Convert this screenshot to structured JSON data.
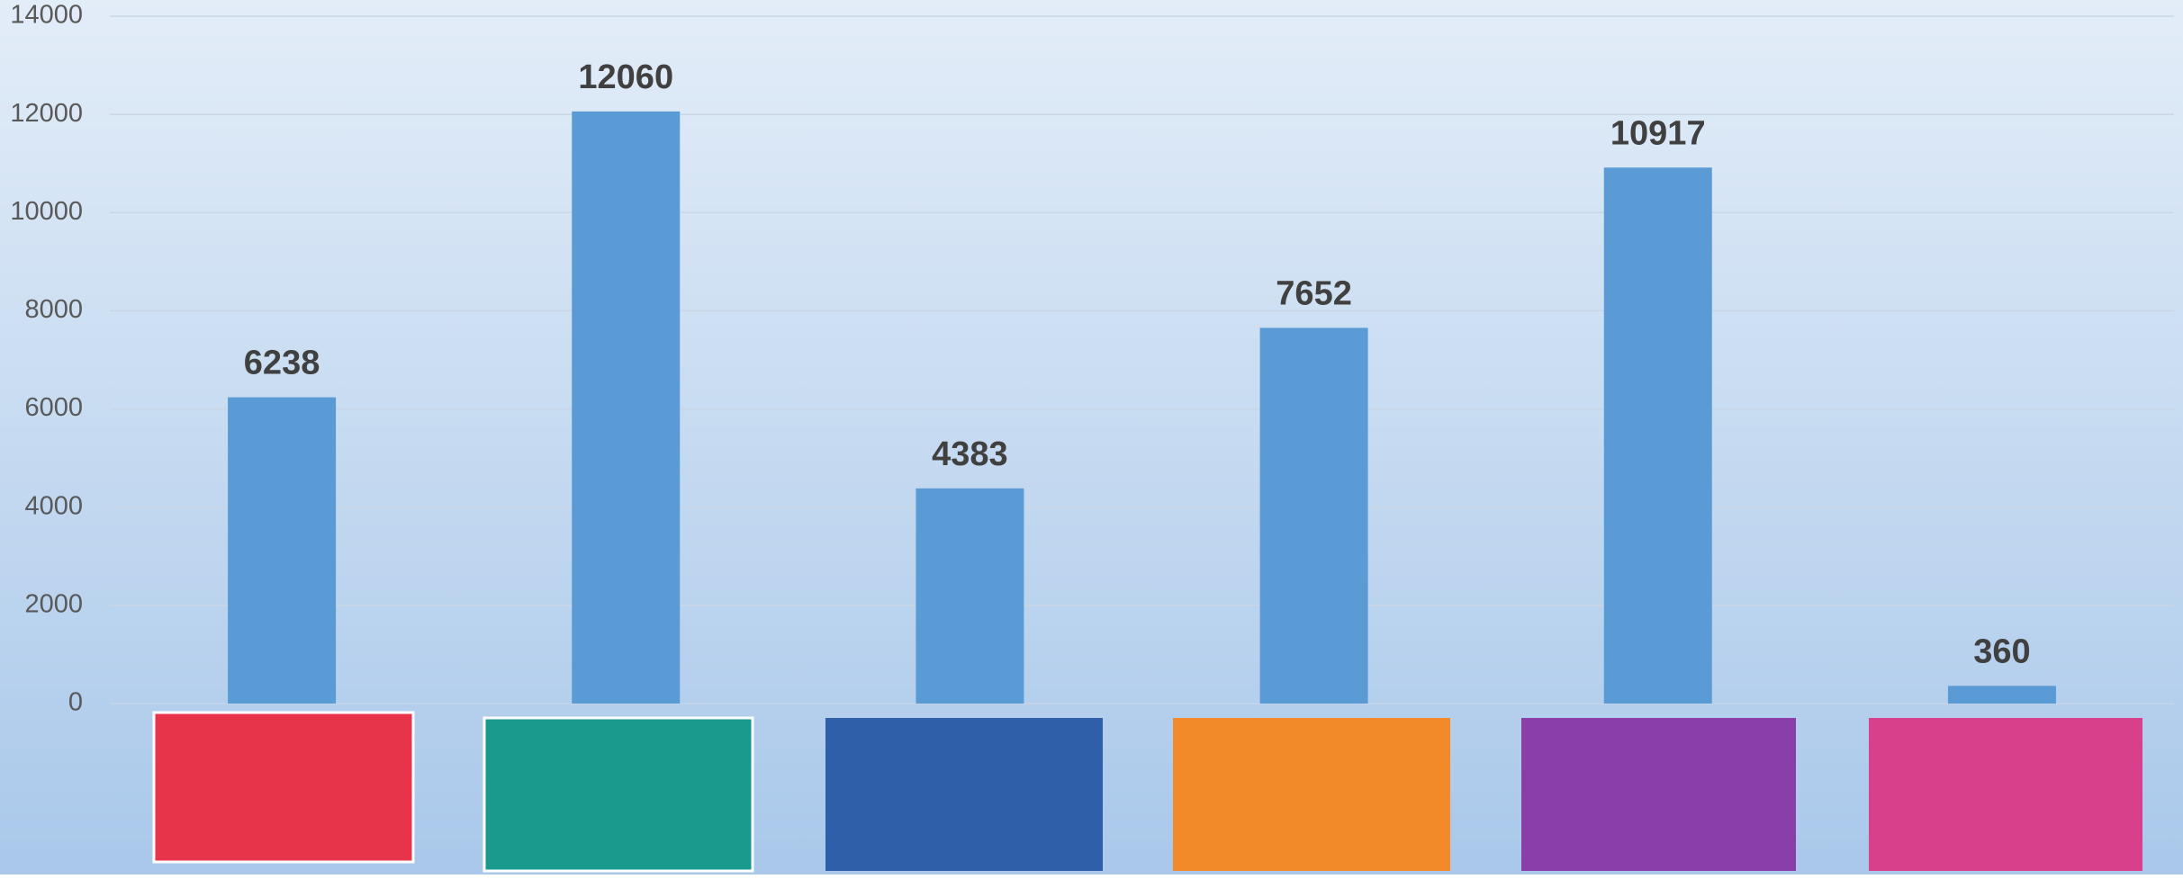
{
  "chart_data": {
    "type": "bar",
    "categories": [
      null,
      null,
      null,
      null,
      null,
      null
    ],
    "values": [
      6238,
      12060,
      4383,
      7652,
      10917,
      360
    ],
    "color": "#5b9bd5",
    "ylim": [
      0,
      14000
    ],
    "yticks": [
      0,
      2000,
      4000,
      6000,
      8000,
      10000,
      12000,
      14000
    ],
    "grid": true,
    "data_labels": true
  }
}
